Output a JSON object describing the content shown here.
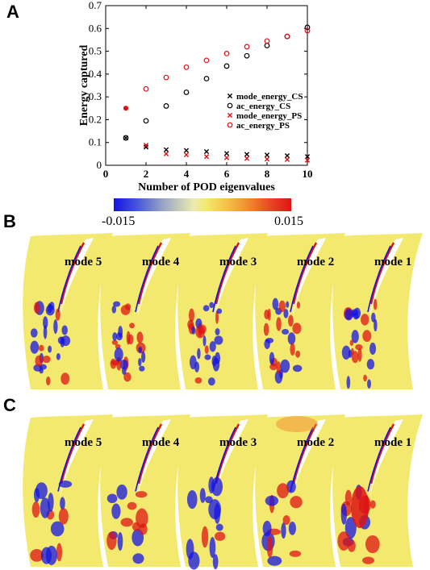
{
  "panels": {
    "a": "A",
    "b": "B",
    "c": "C"
  },
  "colorbar": {
    "min_label": "-0.015",
    "max_label": "0.015",
    "colors": [
      "#1414e6",
      "#9aa6c4",
      "#f3e96e",
      "#f08a2e",
      "#dc1414"
    ]
  },
  "rows": {
    "b": {
      "modes": [
        "mode 5",
        "mode 4",
        "mode 3",
        "mode 2",
        "mode 1"
      ]
    },
    "c": {
      "modes": [
        "mode 5",
        "mode 4",
        "mode 3",
        "mode 2",
        "mode 1"
      ]
    }
  },
  "chart_data": {
    "type": "scatter",
    "xlabel": "Number of POD eigenvalues",
    "ylabel": "Energy captured",
    "xlim": [
      0,
      10
    ],
    "ylim": [
      0,
      0.7
    ],
    "xticks": [
      "0",
      "2",
      "4",
      "6",
      "8",
      "10"
    ],
    "yticks": [
      "0",
      "0.1",
      "0.2",
      "0.3",
      "0.4",
      "0.5",
      "0.6",
      "0.7"
    ],
    "legend_position": "center-right",
    "series": [
      {
        "name": "mode_energy_CS",
        "marker": "x",
        "color": "#000000",
        "x": [
          1,
          2,
          3,
          4,
          5,
          6,
          7,
          8,
          9,
          10
        ],
        "values": [
          0.12,
          0.08,
          0.068,
          0.065,
          0.06,
          0.052,
          0.048,
          0.045,
          0.042,
          0.038
        ]
      },
      {
        "name": "ac_energy_CS",
        "marker": "o",
        "color": "#000000",
        "x": [
          1,
          2,
          3,
          4,
          5,
          6,
          7,
          8,
          9,
          10
        ],
        "values": [
          0.12,
          0.195,
          0.26,
          0.32,
          0.38,
          0.435,
          0.48,
          0.525,
          0.565,
          0.605
        ]
      },
      {
        "name": "mode_energy_PS",
        "marker": "x",
        "color": "#e01010",
        "x": [
          1,
          2,
          3,
          4,
          5,
          6,
          7,
          8,
          9,
          10
        ],
        "values": [
          0.25,
          0.088,
          0.05,
          0.046,
          0.038,
          0.033,
          0.03,
          0.027,
          0.025,
          0.022
        ]
      },
      {
        "name": "ac_energy_PS",
        "marker": "o",
        "color": "#e01010",
        "x": [
          1,
          2,
          3,
          4,
          5,
          6,
          7,
          8,
          9,
          10
        ],
        "values": [
          0.25,
          0.335,
          0.385,
          0.43,
          0.46,
          0.49,
          0.52,
          0.545,
          0.565,
          0.59
        ]
      }
    ]
  }
}
